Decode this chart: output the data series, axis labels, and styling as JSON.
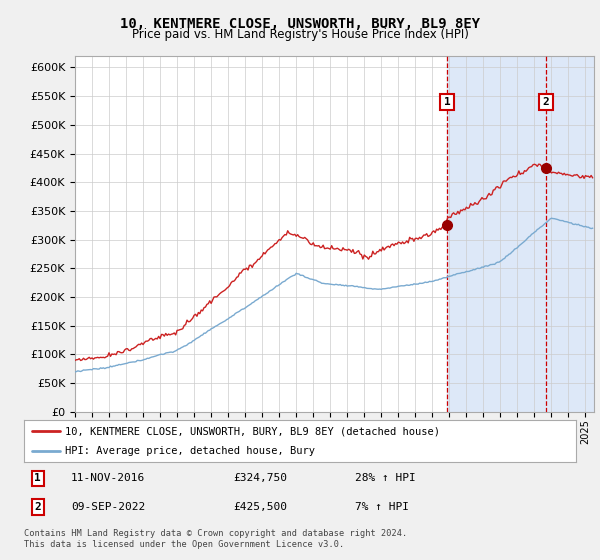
{
  "title": "10, KENTMERE CLOSE, UNSWORTH, BURY, BL9 8EY",
  "subtitle": "Price paid vs. HM Land Registry's House Price Index (HPI)",
  "ylim": [
    0,
    620000
  ],
  "yticks": [
    0,
    50000,
    100000,
    150000,
    200000,
    250000,
    300000,
    350000,
    400000,
    450000,
    500000,
    550000,
    600000
  ],
  "xlim_start": 1995.0,
  "xlim_end": 2025.5,
  "plot_bg_color": "#ffffff",
  "fig_bg_color": "#f0f0f0",
  "grid_color": "#cccccc",
  "sale1_date": 2016.87,
  "sale1_price": 324750,
  "sale2_date": 2022.69,
  "sale2_price": 425500,
  "legend_line1": "10, KENTMERE CLOSE, UNSWORTH, BURY, BL9 8EY (detached house)",
  "legend_line2": "HPI: Average price, detached house, Bury",
  "footer": "Contains HM Land Registry data © Crown copyright and database right 2024.\nThis data is licensed under the Open Government Licence v3.0.",
  "sale_marker_color": "#990000",
  "hpi_line_color": "#7aaad0",
  "price_line_color": "#cc2222",
  "dashed_line_color": "#cc0000",
  "shaded_region_color": "#dde8f8"
}
